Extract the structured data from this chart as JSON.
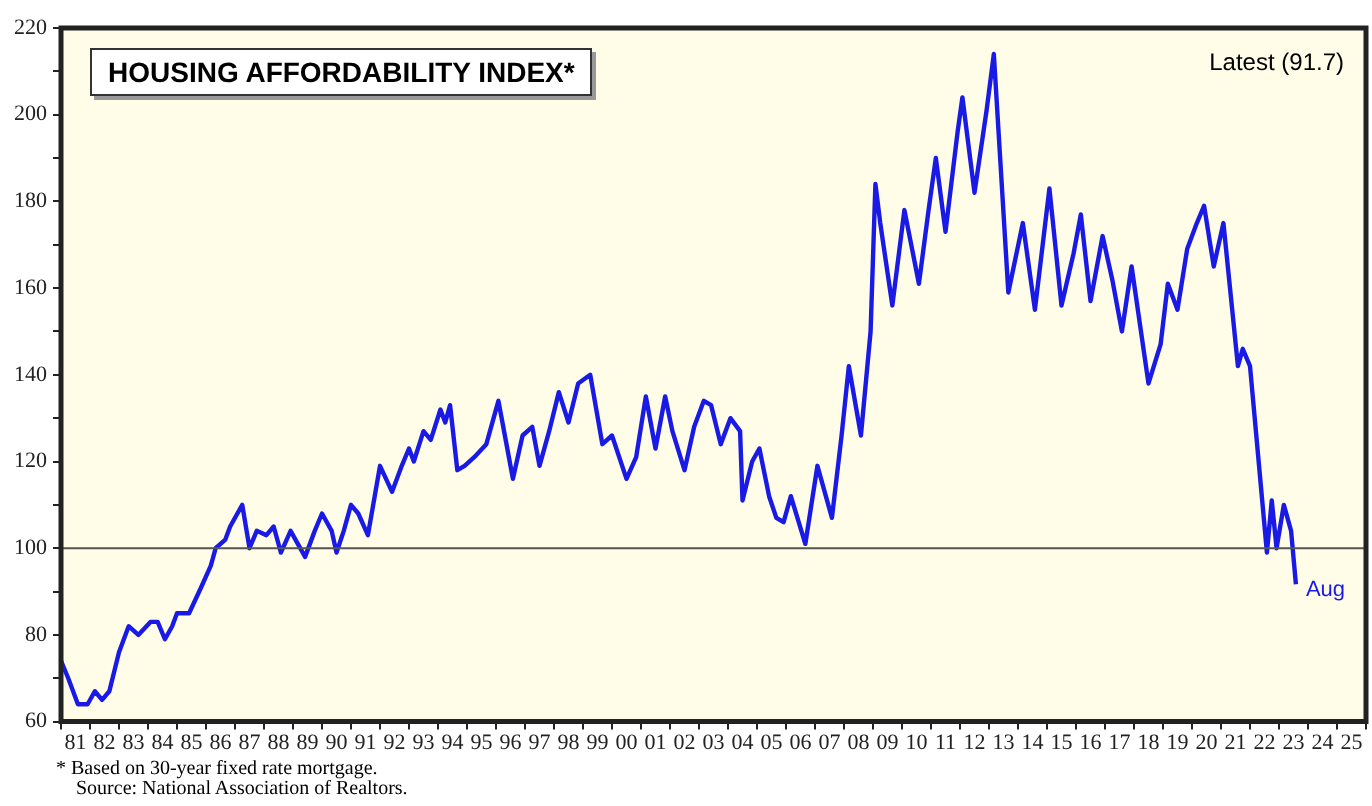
{
  "chart_data": {
    "type": "line",
    "title": "HOUSING AFFORDABILITY INDEX*",
    "annotations": [
      "Latest (91.7)",
      {
        "text": "Aug",
        "x": "2023-08",
        "y": 91.7
      },
      "* Based on 30-year fixed rate mortgage.",
      "Source: National Association of Realtors."
    ],
    "x": [
      "1981-01",
      "1981-04",
      "1981-08",
      "1981-12",
      "1982-03",
      "1982-06",
      "1982-09",
      "1983-01",
      "1983-05",
      "1983-09",
      "1984-02",
      "1984-05",
      "1984-08",
      "1984-11",
      "1985-01",
      "1985-06",
      "1985-11",
      "1986-03",
      "1986-05",
      "1986-09",
      "1986-11",
      "1987-04",
      "1987-07",
      "1987-10",
      "1988-02",
      "1988-05",
      "1988-08",
      "1988-12",
      "1989-06",
      "1989-10",
      "1990-01",
      "1990-05",
      "1990-07",
      "1990-10",
      "1991-01",
      "1991-04",
      "1991-08",
      "1992-01",
      "1992-06",
      "1992-10",
      "1993-01",
      "1993-03",
      "1993-07",
      "1993-10",
      "1994-02",
      "1994-04",
      "1994-06",
      "1994-09",
      "1994-12",
      "1995-04",
      "1995-09",
      "1996-02",
      "1996-08",
      "1996-12",
      "1997-04",
      "1997-07",
      "1997-11",
      "1998-03",
      "1998-07",
      "1998-11",
      "1999-04",
      "1999-09",
      "2000-01",
      "2000-07",
      "2000-11",
      "2001-03",
      "2001-07",
      "2001-11",
      "2002-02",
      "2002-07",
      "2002-11",
      "2003-03",
      "2003-06",
      "2003-10",
      "2004-02",
      "2004-06",
      "2004-07",
      "2004-11",
      "2005-02",
      "2005-06",
      "2005-09",
      "2005-12",
      "2006-03",
      "2006-09",
      "2007-02",
      "2007-08",
      "2007-12",
      "2008-03",
      "2008-08",
      "2008-12",
      "2009-02",
      "2009-04",
      "2009-09",
      "2010-02",
      "2010-08",
      "2010-12",
      "2011-03",
      "2011-07",
      "2011-12",
      "2012-02",
      "2012-07",
      "2012-12",
      "2013-03",
      "2013-09",
      "2014-03",
      "2014-08",
      "2015-02",
      "2015-07",
      "2015-12",
      "2016-03",
      "2016-07",
      "2016-12",
      "2017-04",
      "2017-08",
      "2017-12",
      "2018-07",
      "2018-12",
      "2019-03",
      "2019-07",
      "2019-11",
      "2020-03",
      "2020-06",
      "2020-10",
      "2021-02",
      "2021-08",
      "2021-10",
      "2022-01",
      "2022-08",
      "2022-10",
      "2022-12",
      "2023-03",
      "2023-06",
      "2023-08"
    ],
    "series": [
      {
        "color": "#1a1ae6",
        "values": [
          74,
          70,
          64,
          64,
          67,
          65,
          67,
          76,
          82,
          80,
          83,
          83,
          79,
          82,
          85,
          85,
          91,
          96,
          100,
          102,
          105,
          110,
          100,
          104,
          103,
          105,
          99,
          104,
          98,
          104,
          108,
          104,
          99,
          104,
          110,
          108,
          103,
          119,
          113,
          119,
          123,
          120,
          127,
          125,
          132,
          129,
          133,
          118,
          119,
          121,
          124,
          134,
          116,
          126,
          128,
          119,
          127,
          136,
          129,
          138,
          140,
          124,
          126,
          116,
          121,
          135,
          123,
          135,
          127,
          118,
          128,
          134,
          133,
          124,
          130,
          127,
          111,
          120,
          123,
          112,
          107,
          106,
          112,
          101,
          119,
          107,
          126,
          142,
          126,
          150,
          184,
          175,
          156,
          178,
          161,
          178,
          190,
          173,
          196,
          204,
          182,
          201,
          214,
          159,
          175,
          155,
          183,
          156,
          168,
          177,
          157,
          172,
          162,
          150,
          165,
          138,
          147,
          161,
          155,
          169,
          175,
          179,
          165,
          175,
          142,
          146,
          142,
          99,
          111,
          100,
          110,
          104,
          91.7
        ]
      }
    ],
    "xlim": [
      "1981-01",
      "2026-01"
    ],
    "xticks": [
      {
        "value": "1981-01",
        "label": null
      },
      {
        "value": "1981-07",
        "label": "81"
      },
      {
        "value": "1982-01",
        "label": null
      },
      {
        "value": "1982-07",
        "label": "82"
      },
      {
        "value": "1983-01",
        "label": null
      },
      {
        "value": "1983-07",
        "label": "83"
      },
      {
        "value": "1984-01",
        "label": null
      },
      {
        "value": "1984-07",
        "label": "84"
      },
      {
        "value": "1985-01",
        "label": null
      },
      {
        "value": "1985-07",
        "label": "85"
      },
      {
        "value": "1986-01",
        "label": null
      },
      {
        "value": "1986-07",
        "label": "86"
      },
      {
        "value": "1987-01",
        "label": null
      },
      {
        "value": "1987-07",
        "label": "87"
      },
      {
        "value": "1988-01",
        "label": null
      },
      {
        "value": "1988-07",
        "label": "88"
      },
      {
        "value": "1989-01",
        "label": null
      },
      {
        "value": "1989-07",
        "label": "89"
      },
      {
        "value": "1990-01",
        "label": null
      },
      {
        "value": "1990-07",
        "label": "90"
      },
      {
        "value": "1991-01",
        "label": null
      },
      {
        "value": "1991-07",
        "label": "91"
      },
      {
        "value": "1992-01",
        "label": null
      },
      {
        "value": "1992-07",
        "label": "92"
      },
      {
        "value": "1993-01",
        "label": null
      },
      {
        "value": "1993-07",
        "label": "93"
      },
      {
        "value": "1994-01",
        "label": null
      },
      {
        "value": "1994-07",
        "label": "94"
      },
      {
        "value": "1995-01",
        "label": null
      },
      {
        "value": "1995-07",
        "label": "95"
      },
      {
        "value": "1996-01",
        "label": null
      },
      {
        "value": "1996-07",
        "label": "96"
      },
      {
        "value": "1997-01",
        "label": null
      },
      {
        "value": "1997-07",
        "label": "97"
      },
      {
        "value": "1998-01",
        "label": null
      },
      {
        "value": "1998-07",
        "label": "98"
      },
      {
        "value": "1999-01",
        "label": null
      },
      {
        "value": "1999-07",
        "label": "99"
      },
      {
        "value": "2000-01",
        "label": null
      },
      {
        "value": "2000-07",
        "label": "00"
      },
      {
        "value": "2001-01",
        "label": null
      },
      {
        "value": "2001-07",
        "label": "01"
      },
      {
        "value": "2002-01",
        "label": null
      },
      {
        "value": "2002-07",
        "label": "02"
      },
      {
        "value": "2003-01",
        "label": null
      },
      {
        "value": "2003-07",
        "label": "03"
      },
      {
        "value": "2004-01",
        "label": null
      },
      {
        "value": "2004-07",
        "label": "04"
      },
      {
        "value": "2005-01",
        "label": null
      },
      {
        "value": "2005-07",
        "label": "05"
      },
      {
        "value": "2006-01",
        "label": null
      },
      {
        "value": "2006-07",
        "label": "06"
      },
      {
        "value": "2007-01",
        "label": null
      },
      {
        "value": "2007-07",
        "label": "07"
      },
      {
        "value": "2008-01",
        "label": null
      },
      {
        "value": "2008-07",
        "label": "08"
      },
      {
        "value": "2009-01",
        "label": null
      },
      {
        "value": "2009-07",
        "label": "09"
      },
      {
        "value": "2010-01",
        "label": null
      },
      {
        "value": "2010-07",
        "label": "10"
      },
      {
        "value": "2011-01",
        "label": null
      },
      {
        "value": "2011-07",
        "label": "11"
      },
      {
        "value": "2012-01",
        "label": null
      },
      {
        "value": "2012-07",
        "label": "12"
      },
      {
        "value": "2013-01",
        "label": null
      },
      {
        "value": "2013-07",
        "label": "13"
      },
      {
        "value": "2014-01",
        "label": null
      },
      {
        "value": "2014-07",
        "label": "14"
      },
      {
        "value": "2015-01",
        "label": null
      },
      {
        "value": "2015-07",
        "label": "15"
      },
      {
        "value": "2016-01",
        "label": null
      },
      {
        "value": "2016-07",
        "label": "16"
      },
      {
        "value": "2017-01",
        "label": null
      },
      {
        "value": "2017-07",
        "label": "17"
      },
      {
        "value": "2018-01",
        "label": null
      },
      {
        "value": "2018-07",
        "label": "18"
      },
      {
        "value": "2019-01",
        "label": null
      },
      {
        "value": "2019-07",
        "label": "19"
      },
      {
        "value": "2020-01",
        "label": null
      },
      {
        "value": "2020-07",
        "label": "20"
      },
      {
        "value": "2021-01",
        "label": null
      },
      {
        "value": "2021-07",
        "label": "21"
      },
      {
        "value": "2022-01",
        "label": null
      },
      {
        "value": "2022-07",
        "label": "22"
      },
      {
        "value": "2023-01",
        "label": null
      },
      {
        "value": "2023-07",
        "label": "23"
      },
      {
        "value": "2024-01",
        "label": null
      },
      {
        "value": "2024-07",
        "label": "24"
      },
      {
        "value": "2025-01",
        "label": null
      },
      {
        "value": "2025-07",
        "label": "25"
      },
      {
        "value": "2026-01",
        "label": null
      }
    ],
    "ylim": [
      60,
      220
    ],
    "yticks": [
      60,
      {
        "value": 70,
        "label": null
      },
      80,
      {
        "value": 90,
        "label": null
      },
      100,
      {
        "value": 110,
        "label": null
      },
      120,
      {
        "value": 130,
        "label": null
      },
      140,
      {
        "value": 150,
        "label": null
      },
      160,
      {
        "value": 170,
        "label": null
      },
      180,
      {
        "value": 190,
        "label": null
      },
      200,
      {
        "value": 210,
        "label": null
      },
      220
    ],
    "ref_lines": [
      {
        "axis": "y",
        "value": 100,
        "color": "#555555"
      }
    ],
    "grid": false,
    "legend": false,
    "marker": "none",
    "line_style": "solid"
  }
}
